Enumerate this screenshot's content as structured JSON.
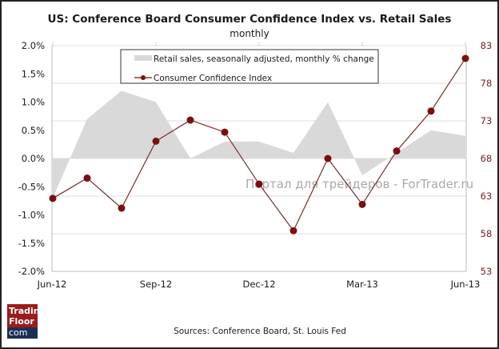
{
  "chart_data": {
    "type": "line",
    "title": "US: Conference Board Consumer Confidence Index  vs.  Retail Sales",
    "subtitle": "monthly",
    "x": [
      "Jun-12",
      "Jul-12",
      "Aug-12",
      "Sep-12",
      "Oct-12",
      "Nov-12",
      "Dec-12",
      "Jan-13",
      "Feb-13",
      "Mar-13",
      "Apr-13",
      "May-13",
      "Jun-13"
    ],
    "x_tick_labels": [
      "Jun-12",
      "Sep-12",
      "Dec-12",
      "Mar-13",
      "Jun-13"
    ],
    "left_axis": {
      "ylim": [
        -2.0,
        2.0
      ],
      "tick_labels": [
        "2.0%",
        "1.5%",
        "1.0%",
        "0.5%",
        "0.0%",
        "-0.5%",
        "-1.0%",
        "-1.5%",
        "-2.0%"
      ]
    },
    "right_axis": {
      "ylim": [
        53,
        83
      ],
      "tick_labels": [
        "83",
        "78",
        "73",
        "68",
        "63",
        "58",
        "53"
      ]
    },
    "grid": true,
    "legend_position": "top-center",
    "series": [
      {
        "name": "Retail sales, seasonally adjusted, monthly % change",
        "type": "area",
        "axis": "left",
        "color": "#d9d9d9",
        "values": [
          -0.7,
          0.7,
          1.2,
          1.0,
          0.0,
          0.3,
          0.3,
          0.1,
          1.0,
          -0.3,
          0.1,
          0.5,
          0.4
        ]
      },
      {
        "name": "Consumer Confidence Index",
        "type": "line",
        "axis": "right",
        "color": "#7a0f0f",
        "values": [
          62.7,
          65.4,
          61.4,
          70.3,
          73.1,
          71.5,
          64.6,
          58.4,
          68.0,
          61.9,
          69.0,
          74.3,
          81.3
        ]
      }
    ]
  },
  "watermark": "Портал для трейдеров - ForTrader.ru",
  "source": "Sources: Conference Board,  St. Louis Fed",
  "logo": {
    "line1": "Trading",
    "line2": "Floor",
    "line3": "com",
    "red": "#9b1c1c",
    "navy": "#1c2f55"
  }
}
